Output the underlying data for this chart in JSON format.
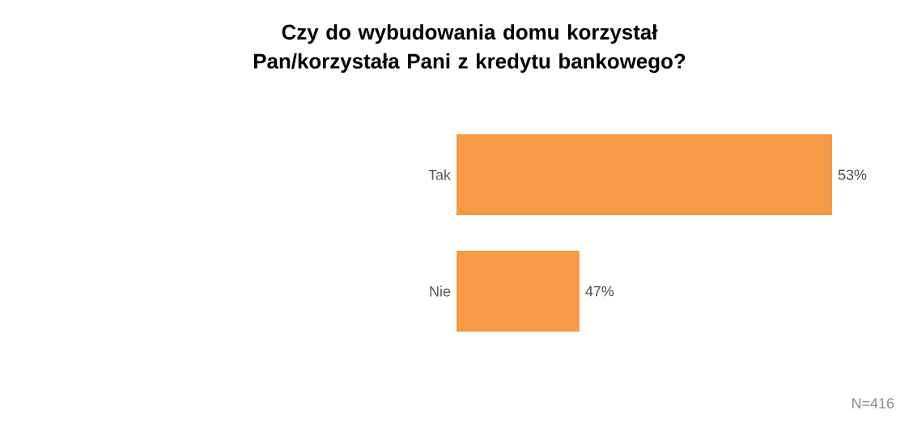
{
  "chart_data": {
    "type": "bar",
    "orientation": "horizontal",
    "title": "Czy do wybudowania domu korzystał Pan/korzystała Pani z kredytu bankowego?",
    "categories": [
      "Tak",
      "Nie"
    ],
    "values": [
      53,
      47
    ],
    "value_labels": [
      "53%",
      "47%"
    ],
    "color": "#f59b45",
    "xlim": [
      44.08,
      53
    ],
    "annotations": [
      "N=416"
    ]
  }
}
